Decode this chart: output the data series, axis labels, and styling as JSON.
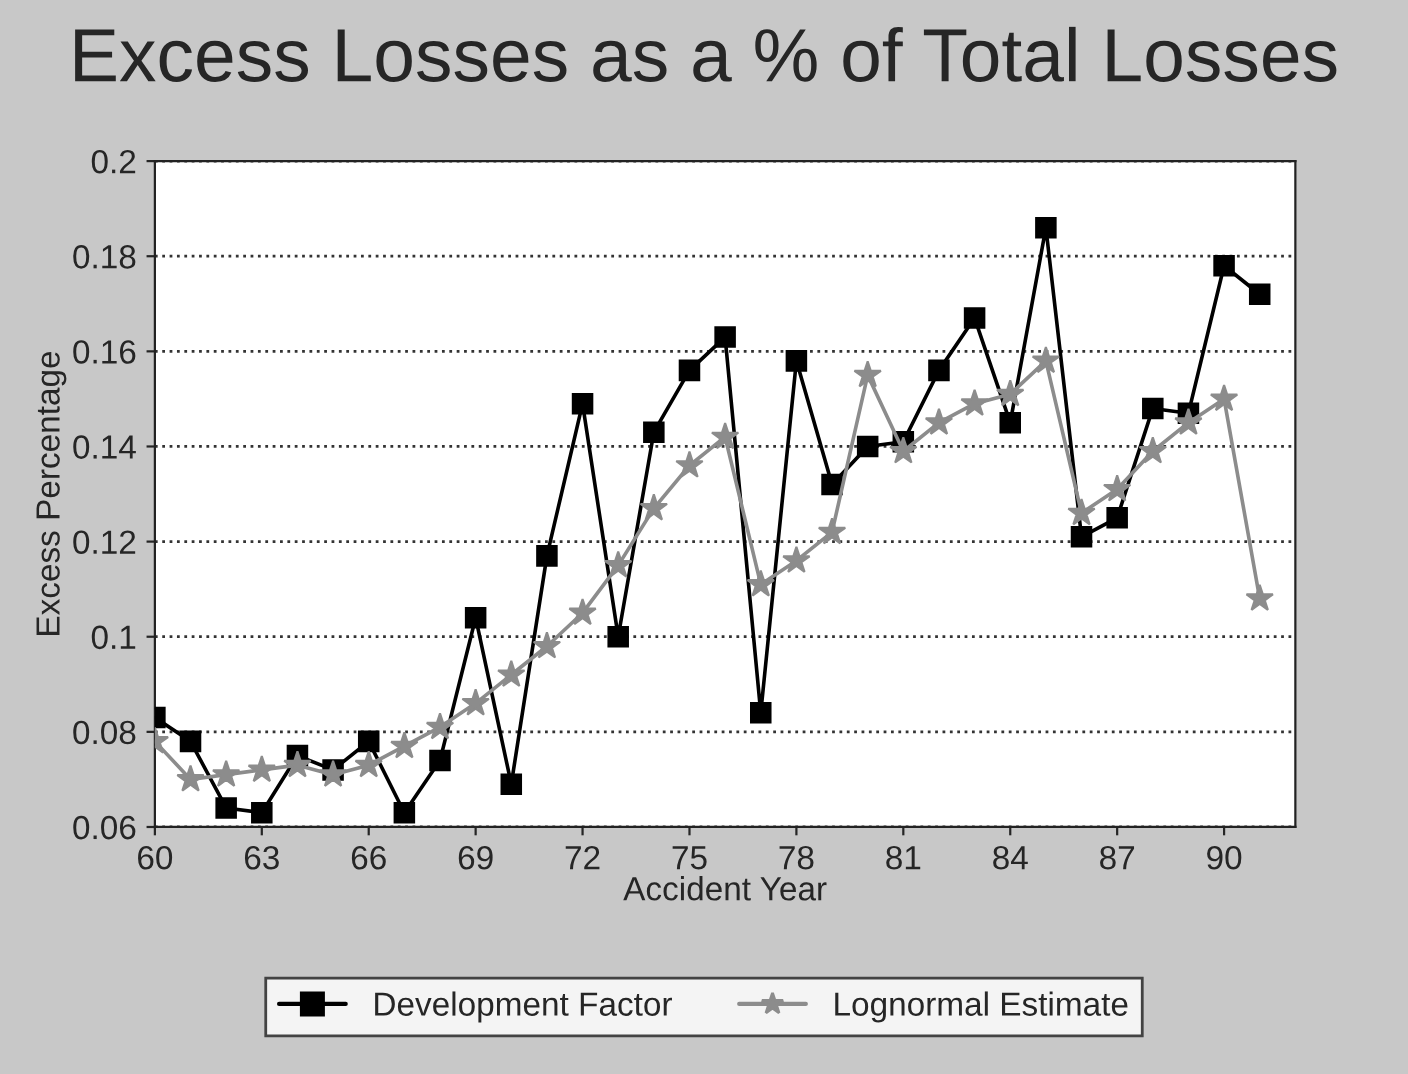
{
  "chart_data": {
    "type": "line",
    "title": "Excess Losses as a % of Total Losses",
    "xlabel": "Accident Year",
    "ylabel": "Excess Percentage",
    "x": [
      60,
      61,
      62,
      63,
      64,
      65,
      66,
      67,
      68,
      69,
      70,
      71,
      72,
      73,
      74,
      75,
      76,
      77,
      78,
      79,
      80,
      81,
      82,
      83,
      84,
      85,
      86,
      87,
      88,
      89,
      90,
      91
    ],
    "series": [
      {
        "name": "Development Factor",
        "color": "#000000",
        "marker": "square",
        "line_style": "solid",
        "values": [
          0.083,
          0.078,
          0.064,
          0.063,
          0.075,
          0.072,
          0.078,
          0.063,
          0.074,
          0.104,
          0.069,
          0.117,
          0.149,
          0.1,
          0.143,
          0.156,
          0.163,
          0.084,
          0.158,
          0.132,
          0.14,
          0.141,
          0.156,
          0.167,
          0.145,
          0.186,
          0.121,
          0.125,
          0.148,
          0.147,
          0.178,
          0.172
        ]
      },
      {
        "name": "Lognormal Estimate",
        "color": "#8c8c8c",
        "marker": "star",
        "line_style": "solid",
        "values": [
          0.078,
          0.07,
          0.071,
          0.072,
          0.073,
          0.071,
          0.073,
          0.077,
          0.081,
          0.086,
          0.092,
          0.098,
          0.105,
          0.115,
          0.127,
          0.136,
          0.142,
          0.111,
          0.116,
          0.122,
          0.155,
          0.139,
          0.145,
          0.149,
          0.151,
          0.158,
          0.126,
          0.131,
          0.139,
          0.145,
          0.15,
          0.108
        ]
      }
    ],
    "xlim": [
      60,
      92
    ],
    "xticks": [
      60,
      63,
      66,
      69,
      72,
      75,
      78,
      81,
      84,
      87,
      90
    ],
    "ylim": [
      0.06,
      0.2
    ],
    "yticks": [
      0.06,
      0.08,
      0.1,
      0.12,
      0.14,
      0.16,
      0.18,
      0.2
    ],
    "grid": "y",
    "legend": "bottom"
  }
}
